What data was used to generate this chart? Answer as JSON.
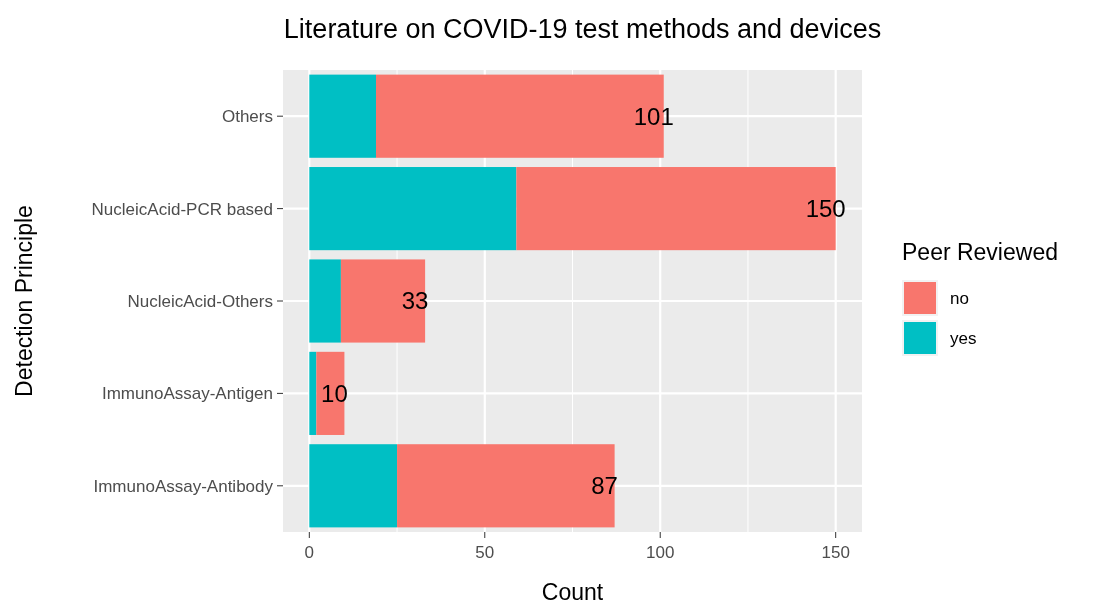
{
  "chart_data": {
    "type": "bar",
    "title": "Literature on COVID-19 test methods and devices",
    "xlabel": "Count",
    "ylabel": "Detection Principle",
    "legend_title": "Peer Reviewed",
    "categories": [
      "Others",
      "NucleicAcid-PCR based",
      "NucleicAcid-Others",
      "ImmunoAssay-Antigen",
      "ImmunoAssay-Antibody"
    ],
    "orientation": "horizontal",
    "stacked": true,
    "series": [
      {
        "name": "yes",
        "color": "#00bfc4",
        "values": [
          19,
          59,
          9,
          2,
          25
        ]
      },
      {
        "name": "no",
        "color": "#f8766d",
        "values": [
          82,
          91,
          24,
          8,
          62
        ]
      }
    ],
    "totals": [
      "101",
      "150",
      "33",
      "10",
      "87"
    ],
    "xlim": [
      -7.5,
      157.5
    ],
    "xticks": [
      0,
      50,
      100,
      150
    ],
    "grid": true,
    "legend": "right"
  }
}
